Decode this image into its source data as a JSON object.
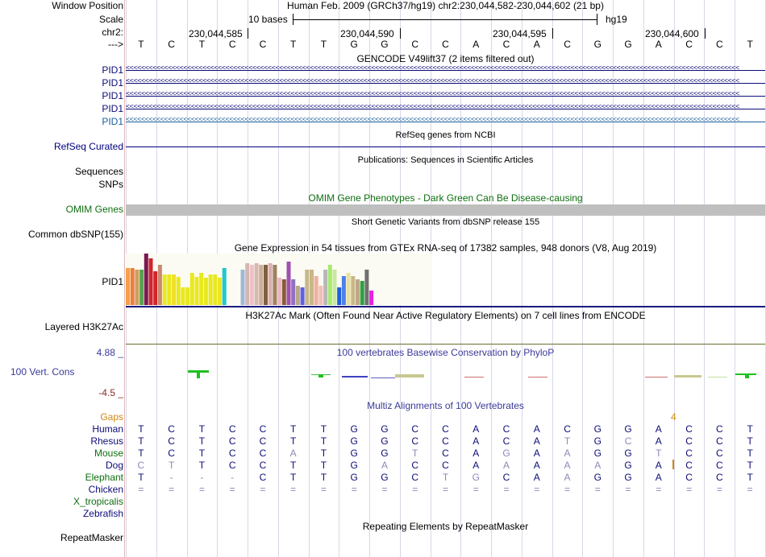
{
  "header": {
    "window_position_label": "Window Position",
    "scale_label": "Scale",
    "chr_label": "chr2:",
    "strand_label": "--->",
    "position_title": "Human Feb. 2009 (GRCh37/hg19)   chr2:230,044,582-230,044,602 (21 bp)",
    "scale_text": "10 bases",
    "assembly": "hg19",
    "coords": [
      "230,044,585",
      "230,044,590",
      "230,044,595",
      "230,044,600"
    ],
    "sequence": [
      "T",
      "C",
      "T",
      "C",
      "C",
      "T",
      "T",
      "G",
      "G",
      "C",
      "C",
      "A",
      "C",
      "A",
      "C",
      "G",
      "G",
      "A",
      "C",
      "C",
      "T"
    ]
  },
  "tracks": {
    "gencode": {
      "title": "GENCODE V49lift37 (2 items filtered out)",
      "genes": [
        "PID1",
        "PID1",
        "PID1",
        "PID1",
        "PID1"
      ],
      "colors": [
        "#0c0c78",
        "#0c0c78",
        "#0c0c78",
        "#0c0c78",
        "#1a5e9e"
      ]
    },
    "refseq": {
      "title": "RefSeq genes from NCBI",
      "label": "RefSeq Curated"
    },
    "publications": {
      "title": "Publications: Sequences in Scientific Articles",
      "label1": "Sequences",
      "label2": "SNPs"
    },
    "omim": {
      "title": "OMIM Gene Phenotypes - Dark Green Can Be Disease-causing",
      "label": "OMIM Genes"
    },
    "dbsnp": {
      "title": "Short Genetic Variants from dbSNP release 155",
      "label": "Common dbSNP(155)"
    },
    "gtex": {
      "title": "Gene Expression in 54 tissues from GTEx RNA-seq of 17382 samples, 948 donors (V8, Aug 2019)",
      "label": "PID1",
      "values": [
        46,
        46,
        44,
        44,
        64,
        58,
        42,
        50,
        38,
        38,
        38,
        35,
        22,
        22,
        40,
        35,
        40,
        34,
        38,
        38,
        34,
        46,
        0,
        0,
        0,
        44,
        52,
        50,
        52,
        50,
        50,
        52,
        50,
        34,
        32,
        54,
        32,
        24,
        22,
        44,
        44,
        36,
        24,
        44,
        50,
        44,
        22,
        36,
        40,
        36,
        32,
        30,
        44,
        18
      ],
      "colors": [
        "#f5a04a",
        "#f07c3c",
        "#c8a060",
        "#5aa050",
        "#7a1a50",
        "#d0242c",
        "#d4242c",
        "#c88a70",
        "#e8e820",
        "#e8e820",
        "#f0e02a",
        "#e8e820",
        "#e8e820",
        "#e8e820",
        "#e8e820",
        "#e8e820",
        "#e8e820",
        "#e8e820",
        "#e8e820",
        "#e8e820",
        "#e8e820",
        "#20c8c8",
        "#ffffff",
        "#ffffff",
        "#ffffff",
        "#a0b8d8",
        "#d4b8b0",
        "#f0c0c8",
        "#d8b8b0",
        "#c8b09a",
        "#806040",
        "#d8b0b0",
        "#a08060",
        "#e8b8c0",
        "#8a5a3a",
        "#a050b0",
        "#9070c0",
        "#b8a888",
        "#6060e0",
        "#c8b888",
        "#c8b888",
        "#f0b0a0",
        "#f0c0b8",
        "#b8b8b8",
        "#a8e870",
        "#c8e8a0",
        "#2060e0",
        "#5080e8",
        "#e8e0a0",
        "#c8b888",
        "#c0a888",
        "#30a040",
        "#707070",
        "#e820e0"
      ]
    },
    "h3k27ac": {
      "title": "H3K27Ac Mark (Often Found Near Active Regulatory Elements) on 7 cell lines from ENCODE",
      "label": "Layered H3K27Ac"
    },
    "conservation": {
      "title": "100 vertebrates Basewise Conservation by PhyloP",
      "label": "100 Vert. Cons",
      "ymax": "4.88 _",
      "ymin": "-4.5 _"
    },
    "multiz": {
      "title": "Multiz Alignments of 100 Vertebrates",
      "gaps_label": "Gaps",
      "gap_value": "4",
      "species": [
        {
          "name": "Human",
          "bases": [
            "T",
            "C",
            "T",
            "C",
            "C",
            "T",
            "T",
            "G",
            "G",
            "C",
            "C",
            "A",
            "C",
            "A",
            "C",
            "G",
            "G",
            "A",
            "C",
            "C",
            "T"
          ]
        },
        {
          "name": "Rhesus",
          "bases": [
            "T",
            "C",
            "T",
            "C",
            "C",
            "T",
            "T",
            "G",
            "G",
            "C",
            "C",
            "A",
            "C",
            "A",
            "T",
            "G",
            "C",
            "A",
            "C",
            "C",
            "T"
          ]
        },
        {
          "name": "Mouse",
          "bases": [
            "T",
            "C",
            "T",
            "C",
            "C",
            "A",
            "T",
            "G",
            "G",
            "T",
            "C",
            "A",
            "G",
            "A",
            "A",
            "G",
            "G",
            "T",
            "C",
            "C",
            "T"
          ]
        },
        {
          "name": "Dog",
          "bases": [
            "C",
            "T",
            "T",
            "C",
            "C",
            "T",
            "T",
            "G",
            "A",
            "C",
            "C",
            "A",
            "A",
            "A",
            "A",
            "A",
            "G",
            "A",
            "C",
            "C",
            "T"
          ]
        },
        {
          "name": "Elephant",
          "bases": [
            "T",
            "-",
            "-",
            "-",
            "C",
            "T",
            "T",
            "G",
            "G",
            "C",
            "T",
            "G",
            "C",
            "A",
            "A",
            "G",
            "G",
            "A",
            "C",
            "C",
            "T"
          ]
        },
        {
          "name": "Chicken",
          "bases": [
            "=",
            "=",
            "=",
            "=",
            "=",
            "=",
            "=",
            "=",
            "=",
            "=",
            "=",
            "=",
            "=",
            "=",
            "=",
            "=",
            "=",
            "=",
            "=",
            "=",
            "="
          ]
        },
        {
          "name": "X_tropicalis",
          "bases": []
        },
        {
          "name": "Zebrafish",
          "bases": []
        }
      ]
    },
    "repeatmasker": {
      "title": "Repeating Elements by RepeatMasker",
      "label": "RepeatMasker"
    }
  }
}
